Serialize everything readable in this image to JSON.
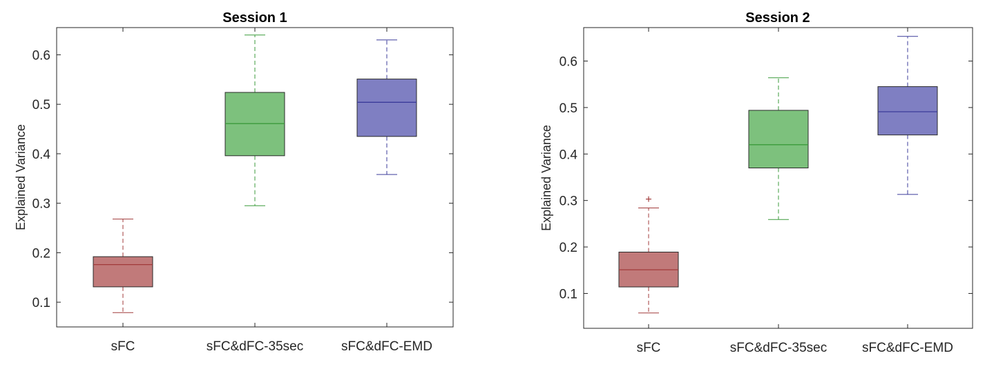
{
  "chart_data": [
    {
      "type": "box",
      "title": "Session 1",
      "xlabel": "",
      "ylabel": "Explained Variance",
      "ylim": [
        0.05,
        0.655
      ],
      "yticks": [
        0.1,
        0.2,
        0.3,
        0.4,
        0.5,
        0.6
      ],
      "ytick_labels": [
        "0.1",
        "0.2",
        "0.3",
        "0.4",
        "0.5",
        "0.6"
      ],
      "categories": [
        "sFC",
        "sFC&dFC-35sec",
        "sFC&dFC-EMD"
      ],
      "colors": [
        "#c17a7a",
        "#7dc17d",
        "#7f7fc2"
      ],
      "line_colors": [
        "#a13a3a",
        "#3a9a3a",
        "#3a3a9a"
      ],
      "boxes": [
        {
          "whisker_low": 0.079,
          "q1": 0.131,
          "median": 0.176,
          "q3": 0.192,
          "whisker_high": 0.268,
          "outliers": []
        },
        {
          "whisker_low": 0.295,
          "q1": 0.396,
          "median": 0.461,
          "q3": 0.524,
          "whisker_high": 0.64,
          "outliers": []
        },
        {
          "whisker_low": 0.358,
          "q1": 0.435,
          "median": 0.504,
          "q3": 0.551,
          "whisker_high": 0.63,
          "outliers": []
        }
      ]
    },
    {
      "type": "box",
      "title": "Session 2",
      "xlabel": "",
      "ylabel": "Explained Variance",
      "ylim": [
        0.025,
        0.672
      ],
      "yticks": [
        0.1,
        0.2,
        0.3,
        0.4,
        0.5,
        0.6
      ],
      "ytick_labels": [
        "0.1",
        "0.2",
        "0.3",
        "0.4",
        "0.5",
        "0.6"
      ],
      "categories": [
        "sFC",
        "sFC&dFC-35sec",
        "sFC&dFC-EMD"
      ],
      "colors": [
        "#c17a7a",
        "#7dc17d",
        "#7f7fc2"
      ],
      "line_colors": [
        "#a13a3a",
        "#3a9a3a",
        "#3a3a9a"
      ],
      "boxes": [
        {
          "whisker_low": 0.058,
          "q1": 0.114,
          "median": 0.151,
          "q3": 0.189,
          "whisker_high": 0.284,
          "outliers": [
            0.303
          ]
        },
        {
          "whisker_low": 0.259,
          "q1": 0.37,
          "median": 0.42,
          "q3": 0.494,
          "whisker_high": 0.564,
          "outliers": []
        },
        {
          "whisker_low": 0.313,
          "q1": 0.441,
          "median": 0.491,
          "q3": 0.545,
          "whisker_high": 0.653,
          "outliers": []
        }
      ]
    }
  ]
}
